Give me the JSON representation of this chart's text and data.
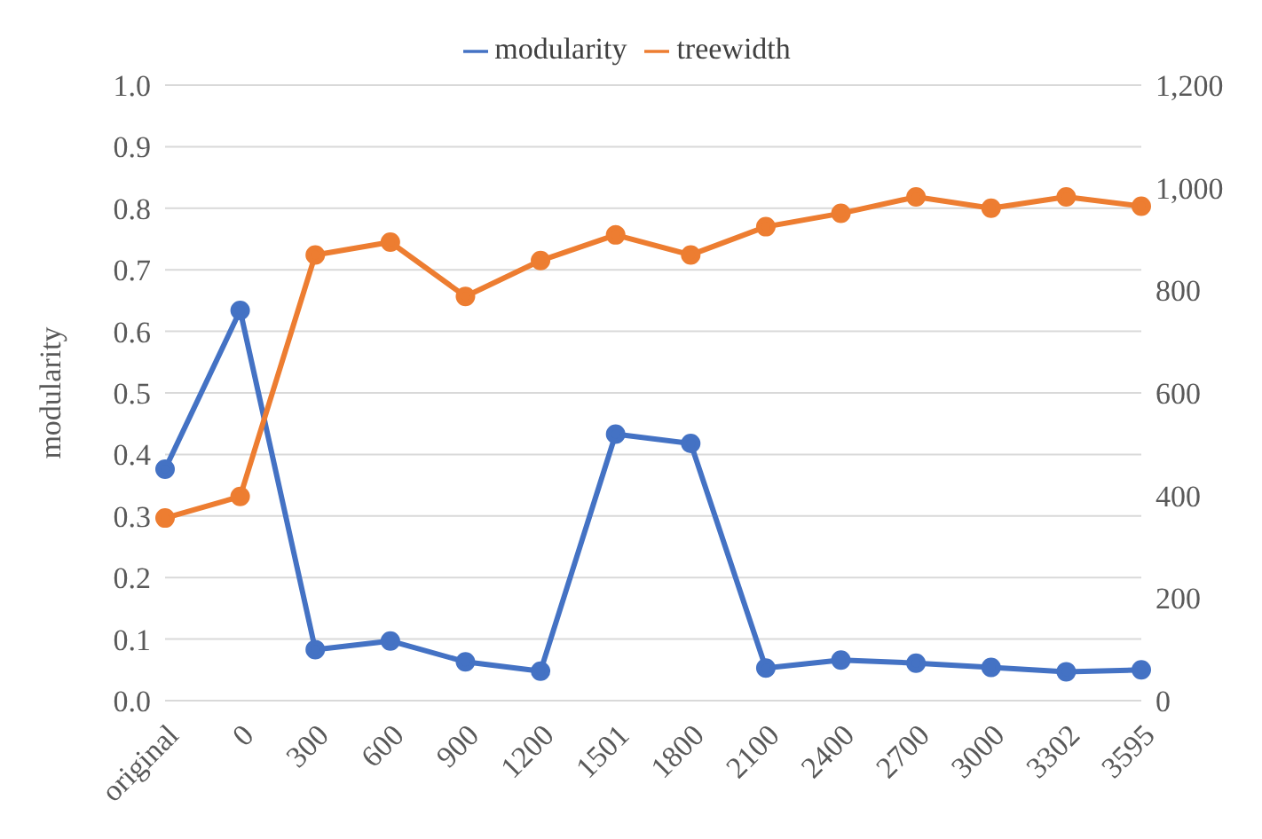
{
  "chart_data": {
    "type": "line",
    "ylabel": "modularity",
    "categories": [
      "original",
      "0",
      "300",
      "600",
      "900",
      "1200",
      "1501",
      "1800",
      "2100",
      "2400",
      "2700",
      "3000",
      "3302",
      "3595"
    ],
    "series": [
      {
        "name": "modularity",
        "color": "#4472c4",
        "values": [
          0.376,
          0.634,
          0.083,
          0.097,
          0.063,
          0.048,
          0.433,
          0.418,
          0.053,
          0.066,
          0.061,
          0.054,
          0.047,
          0.05
        ]
      },
      {
        "name": "treewidth",
        "color": "#ed7d31",
        "axis": "y2",
        "values": [
          356,
          398,
          869,
          894,
          788,
          858,
          908,
          869,
          924,
          950,
          982,
          960,
          982,
          964
        ]
      }
    ],
    "ylim": [
      0,
      1
    ],
    "yticks": [
      {
        "value": 0,
        "label": "0.0"
      },
      {
        "value": 0.1,
        "label": "0.1"
      },
      {
        "value": 0.2,
        "label": "0.2"
      },
      {
        "value": 0.3,
        "label": "0.3"
      },
      {
        "value": 0.4,
        "label": "0.4"
      },
      {
        "value": 0.5,
        "label": "0.5"
      },
      {
        "value": 0.6,
        "label": "0.6"
      },
      {
        "value": 0.7,
        "label": "0.7"
      },
      {
        "value": 0.8,
        "label": "0.8"
      },
      {
        "value": 0.9,
        "label": "0.9"
      },
      {
        "value": 1,
        "label": "1.0"
      }
    ],
    "y2lim": [
      0,
      1200
    ],
    "y2ticks": [
      0,
      200,
      400,
      600,
      800,
      {
        "value": 1000,
        "label": "1,000"
      },
      {
        "value": 1200,
        "label": "1,200"
      }
    ],
    "grid": "y",
    "legend": "top",
    "marker": "circle",
    "line_style": "solid"
  }
}
